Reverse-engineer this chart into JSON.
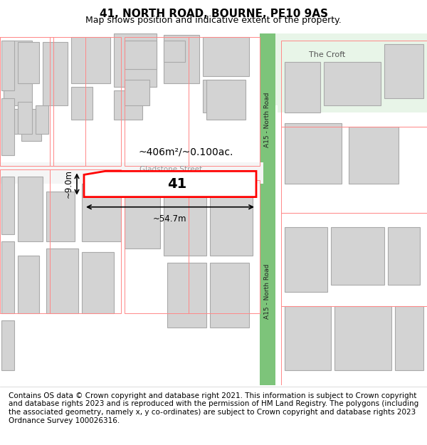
{
  "title": "41, NORTH ROAD, BOURNE, PE10 9AS",
  "subtitle": "Map shows position and indicative extent of the property.",
  "footer": "Contains OS data © Crown copyright and database right 2021. This information is subject to Crown copyright and database rights 2023 and is reproduced with the permission of HM Land Registry. The polygons (including the associated geometry, namely x, y co-ordinates) are subject to Crown copyright and database rights 2023 Ordnance Survey 100026316.",
  "map_bg": "#ffffff",
  "road_color_green": "#7dc47a",
  "road_color_green_light": "#c8e6c8",
  "building_fill": "#d3d3d3",
  "building_edge": "#aaaaaa",
  "plot_edge_color": "#ff0000",
  "plot_fill": "#ffffff",
  "street_label_color": "#888888",
  "road_label_color": "#333333",
  "plot_number": "41",
  "area_label": "~406m²/~0.100ac.",
  "width_label": "~54.7m",
  "height_label": "~9.0m",
  "title_fontsize": 11,
  "subtitle_fontsize": 9,
  "footer_fontsize": 7.5
}
